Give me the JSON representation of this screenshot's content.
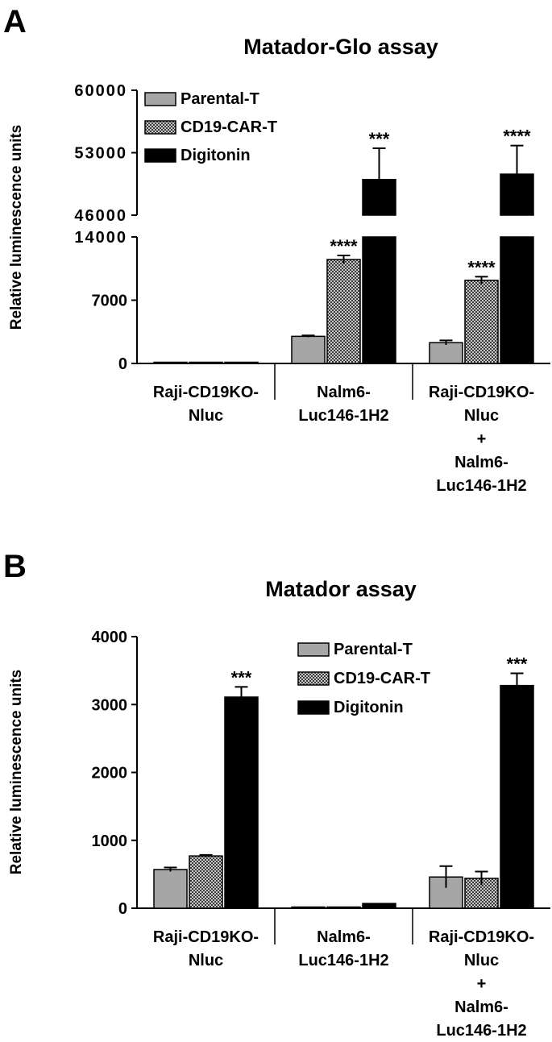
{
  "chart_data": [
    {
      "panel_label": "A",
      "type": "bar",
      "title": "Matador-Glo assay",
      "ylabel": "Relative luminescence units",
      "axis_break": true,
      "lower_ylim": [
        0,
        14000
      ],
      "upper_ylim": [
        46000,
        60000
      ],
      "yticks_lower": [
        "0",
        "7000",
        "14000"
      ],
      "yticks_upper": [
        "46000",
        "53000",
        "60000"
      ],
      "categories": [
        [
          "Raji-CD19KO-",
          "Nluc"
        ],
        [
          "Nalm6-",
          "Luc146-1H2"
        ],
        [
          "Raji-CD19KO-",
          "Nluc",
          "+",
          "Nalm6-",
          "Luc146-1H2"
        ]
      ],
      "legend": {
        "placement": "top-left",
        "entries": [
          "Parental-T",
          "CD19-CAR-T",
          "Digitonin"
        ]
      },
      "series": [
        {
          "name": "Parental-T",
          "color": "#a6a6a6",
          "values": [
            0,
            3000,
            2300
          ],
          "errors": [
            0,
            100,
            250
          ],
          "stars": [
            "",
            "",
            ""
          ]
        },
        {
          "name": "CD19-CAR-T",
          "color": "#7f7f7f",
          "values": [
            0,
            11500,
            9200
          ],
          "errors": [
            0,
            450,
            400
          ],
          "stars": [
            "",
            "****",
            "****"
          ]
        },
        {
          "name": "Digitonin",
          "color": "#000000",
          "values": [
            100,
            50000,
            50600
          ],
          "errors": [
            0,
            3500,
            3200
          ],
          "stars": [
            "",
            "***",
            "****"
          ]
        }
      ]
    },
    {
      "panel_label": "B",
      "type": "bar",
      "title": "Matador assay",
      "ylabel": "Relative luminescence units",
      "axis_break": false,
      "ylim": [
        0,
        4000
      ],
      "yticks": [
        "0",
        "1000",
        "2000",
        "3000",
        "4000"
      ],
      "categories": [
        [
          "Raji-CD19KO-",
          "Nluc"
        ],
        [
          "Nalm6-",
          "Luc146-1H2"
        ],
        [
          "Raji-CD19KO-",
          "Nluc",
          "+",
          "Nalm6-",
          "Luc146-1H2"
        ]
      ],
      "legend": {
        "placement": "top-right",
        "entries": [
          "Parental-T",
          "CD19-CAR-T",
          "Digitonin"
        ]
      },
      "series": [
        {
          "name": "Parental-T",
          "color": "#a6a6a6",
          "values": [
            570,
            0,
            460
          ],
          "errors": [
            30,
            0,
            160
          ],
          "stars": [
            "",
            "",
            ""
          ]
        },
        {
          "name": "CD19-CAR-T",
          "color": "#7f7f7f",
          "values": [
            770,
            0,
            440
          ],
          "errors": [
            15,
            0,
            100
          ],
          "stars": [
            "",
            "",
            ""
          ]
        },
        {
          "name": "Digitonin",
          "color": "#000000",
          "values": [
            3110,
            70,
            3280
          ],
          "errors": [
            150,
            0,
            180
          ],
          "stars": [
            "***",
            "",
            "***"
          ]
        }
      ]
    }
  ]
}
